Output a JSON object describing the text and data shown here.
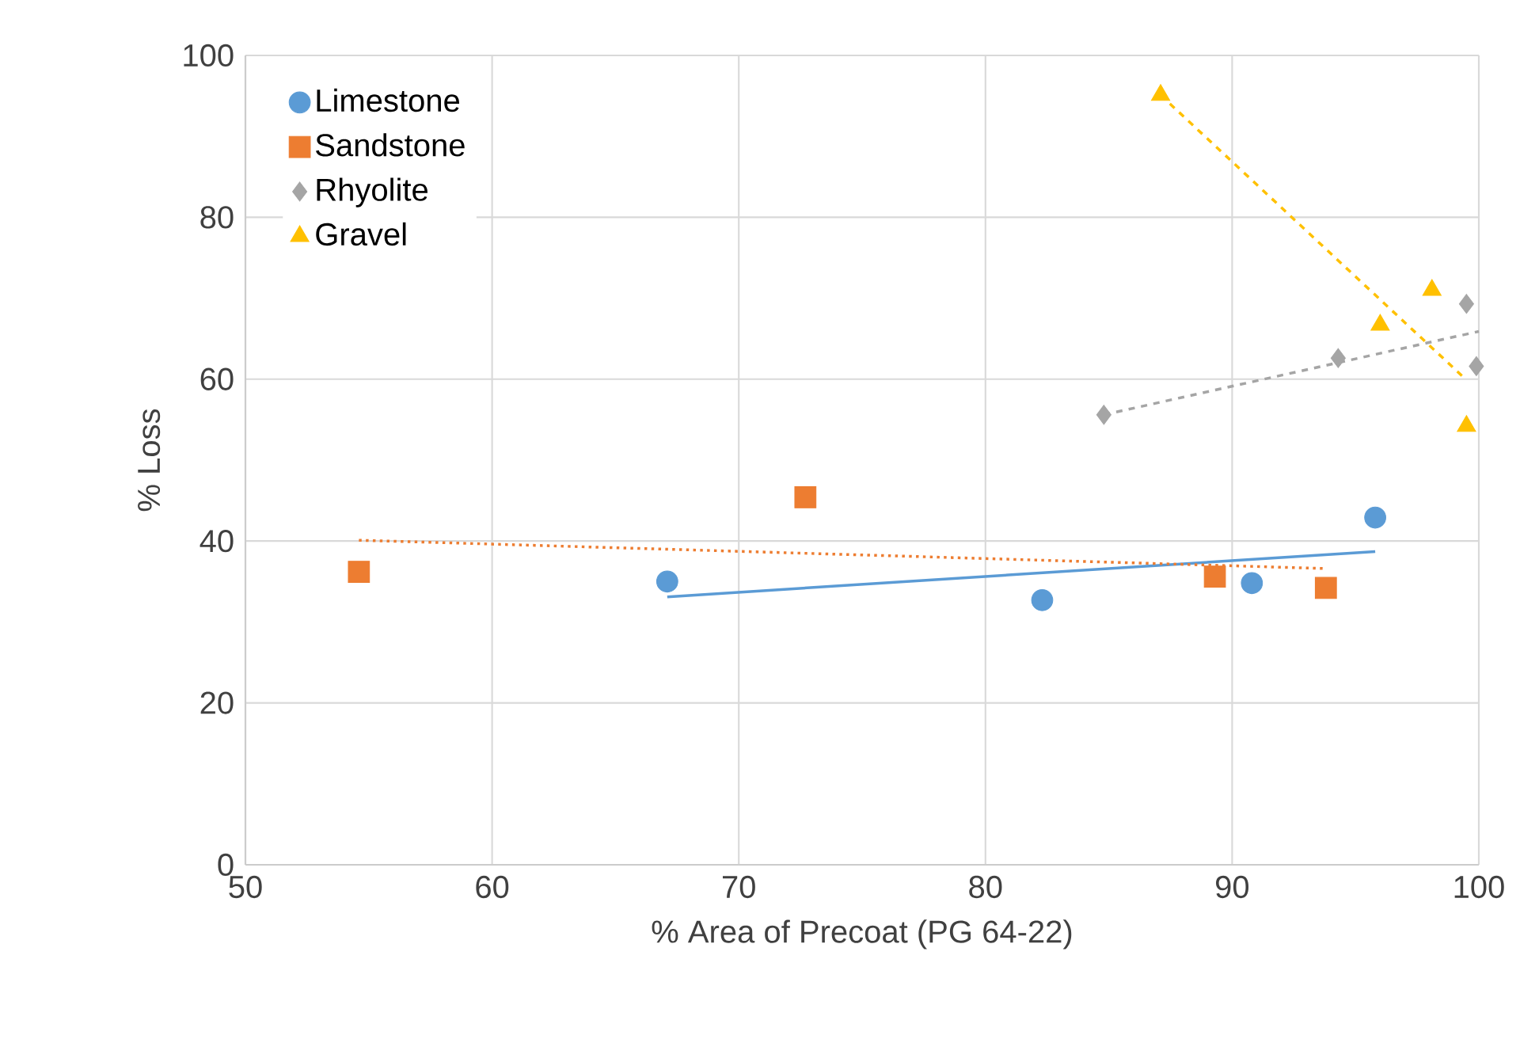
{
  "chart_data": {
    "type": "scatter",
    "xlabel": "% Area of Precoat (PG 64-22)",
    "ylabel": "% Loss",
    "xlim": [
      50,
      100
    ],
    "ylim": [
      0,
      100
    ],
    "xticks": [
      50,
      60,
      70,
      80,
      90,
      100
    ],
    "yticks": [
      0,
      20,
      40,
      60,
      80,
      100
    ],
    "grid": true,
    "legend": "top left",
    "series": [
      {
        "name": "Limestone",
        "color": "#5b9bd5",
        "marker": "circle",
        "x": [
          67.1,
          82.3,
          90.8,
          95.8
        ],
        "values": [
          35.0,
          32.7,
          34.8,
          42.9
        ]
      },
      {
        "name": "Sandstone",
        "color": "#ed7d31",
        "marker": "square",
        "x": [
          54.6,
          72.7,
          89.3,
          93.8
        ],
        "values": [
          36.2,
          45.4,
          35.6,
          34.2
        ]
      },
      {
        "name": "Rhyolite",
        "color": "#a5a5a5",
        "marker": "diamond",
        "x": [
          84.8,
          94.3,
          99.5,
          99.9
        ],
        "values": [
          55.6,
          62.6,
          69.3,
          61.6
        ]
      },
      {
        "name": "Gravel",
        "color": "#ffc000",
        "marker": "triangle",
        "x": [
          87.1,
          96.0,
          98.1,
          99.5
        ],
        "values": [
          95.1,
          66.7,
          71.0,
          54.2
        ]
      },
      {
        "type": "line",
        "color": "#5b9bd5",
        "line_style": "solid",
        "marker": "none",
        "x": [
          67.1,
          95.8
        ],
        "values": [
          33.1,
          38.7
        ]
      },
      {
        "type": "line",
        "color": "#ed7d31",
        "line_style": "dotted",
        "marker": "none",
        "x": [
          54.6,
          93.8
        ],
        "values": [
          40.1,
          36.6
        ]
      },
      {
        "type": "line",
        "color": "#a5a5a5",
        "line_style": "dashed",
        "marker": "none",
        "x": [
          84.8,
          100
        ],
        "values": [
          55.6,
          65.9
        ]
      },
      {
        "type": "line",
        "color": "#ffc000",
        "line_style": "dashed",
        "marker": "none",
        "x": [
          87.1,
          99.5
        ],
        "values": [
          95.1,
          59.9
        ]
      }
    ]
  }
}
